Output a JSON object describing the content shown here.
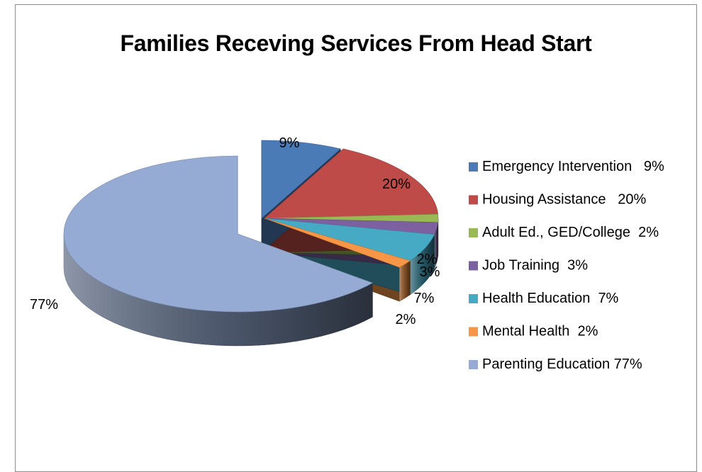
{
  "chart_data": {
    "type": "pie",
    "title": "Families Receving Services From Head Start",
    "slices": [
      {
        "label": "Emergency Intervention",
        "legend_text": "Emergency Intervention   9%",
        "value": 9,
        "data_label": "9%",
        "color": "#4a7bb7",
        "exploded": true
      },
      {
        "label": "Housing Assistance",
        "legend_text": "Housing Assistance   20%",
        "value": 20,
        "data_label": "20%",
        "color": "#be4b48",
        "exploded": true
      },
      {
        "label": "Adult Ed., GED/College",
        "legend_text": "Adult Ed., GED/College  2%",
        "value": 2,
        "data_label": "2%",
        "color": "#98b954",
        "exploded": true
      },
      {
        "label": "Job Training",
        "legend_text": "Job Training  3%",
        "value": 3,
        "data_label": "3%",
        "color": "#7d60a0",
        "exploded": true
      },
      {
        "label": "Health Education",
        "legend_text": "Health Education  7%",
        "value": 7,
        "data_label": "7%",
        "color": "#46aac5",
        "exploded": true
      },
      {
        "label": "Mental Health",
        "legend_text": "Mental Health  2%",
        "value": 2,
        "data_label": "2%",
        "color": "#f79646",
        "exploded": true
      },
      {
        "label": "Parenting Education",
        "legend_text": "Parenting Education 77%",
        "value": 77,
        "data_label": "77%",
        "color": "#95abd3",
        "exploded": false
      }
    ],
    "legend_position": "right",
    "style": "3d-exploded-pie"
  }
}
